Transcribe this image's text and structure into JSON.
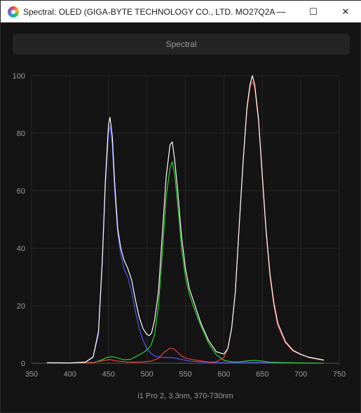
{
  "window": {
    "title": "Spectral: OLED (GIGA-BYTE TECHNOLOGY CO., LTD. MO27Q2A...",
    "icon": "app-logo-icon",
    "minimize_glyph": "—",
    "maximize_glyph": "☐",
    "close_glyph": "✕"
  },
  "toolbar": {
    "spectral_label": "Spectral"
  },
  "chart_data": {
    "type": "line",
    "title": "",
    "xlabel": "i1 Pro 2, 3.3nm, 370-730nm",
    "ylabel": "",
    "xlim": [
      350,
      750
    ],
    "ylim": [
      0,
      100
    ],
    "xticks": [
      350,
      400,
      450,
      500,
      550,
      600,
      650,
      700,
      750
    ],
    "yticks": [
      0,
      20,
      40,
      60,
      80,
      100
    ],
    "grid": true,
    "background": "#141414",
    "series": [
      {
        "color": "#5a5aff",
        "points": [
          [
            370,
            0
          ],
          [
            400,
            0
          ],
          [
            420,
            0.3
          ],
          [
            430,
            2
          ],
          [
            437,
            10
          ],
          [
            442,
            35
          ],
          [
            446,
            62
          ],
          [
            450,
            80
          ],
          [
            452,
            82.5
          ],
          [
            455,
            76
          ],
          [
            458,
            60
          ],
          [
            462,
            45
          ],
          [
            466,
            38
          ],
          [
            470,
            33
          ],
          [
            475,
            30
          ],
          [
            480,
            25
          ],
          [
            485,
            18
          ],
          [
            490,
            12
          ],
          [
            495,
            8
          ],
          [
            500,
            5
          ],
          [
            505,
            3.5
          ],
          [
            510,
            2.5
          ],
          [
            520,
            2
          ],
          [
            530,
            2
          ],
          [
            540,
            1.6
          ],
          [
            550,
            1
          ],
          [
            560,
            0.6
          ],
          [
            580,
            0.3
          ],
          [
            600,
            0.2
          ],
          [
            620,
            0.2
          ],
          [
            640,
            0.3
          ],
          [
            660,
            0.2
          ],
          [
            700,
            0.1
          ],
          [
            730,
            0
          ]
        ]
      },
      {
        "color": "#33dd33",
        "points": [
          [
            370,
            0
          ],
          [
            430,
            0.2
          ],
          [
            440,
            1
          ],
          [
            448,
            2
          ],
          [
            455,
            2.3
          ],
          [
            462,
            1.8
          ],
          [
            470,
            1.2
          ],
          [
            478,
            1.3
          ],
          [
            485,
            2.2
          ],
          [
            492,
            3.2
          ],
          [
            498,
            4.2
          ],
          [
            505,
            6
          ],
          [
            510,
            10
          ],
          [
            515,
            20
          ],
          [
            520,
            38
          ],
          [
            525,
            58
          ],
          [
            530,
            68
          ],
          [
            533,
            70
          ],
          [
            536,
            66
          ],
          [
            540,
            55
          ],
          [
            545,
            40
          ],
          [
            550,
            30
          ],
          [
            555,
            24
          ],
          [
            560,
            20
          ],
          [
            570,
            13
          ],
          [
            580,
            7
          ],
          [
            590,
            3
          ],
          [
            600,
            1
          ],
          [
            610,
            0.5
          ],
          [
            620,
            0.5
          ],
          [
            630,
            0.8
          ],
          [
            640,
            1
          ],
          [
            650,
            0.7
          ],
          [
            660,
            0.4
          ],
          [
            680,
            0.2
          ],
          [
            700,
            0.1
          ],
          [
            730,
            0
          ]
        ]
      },
      {
        "color": "#ff4040",
        "points": [
          [
            370,
            0
          ],
          [
            430,
            0.3
          ],
          [
            445,
            1
          ],
          [
            452,
            1.3
          ],
          [
            460,
            0.8
          ],
          [
            475,
            0.4
          ],
          [
            490,
            0.4
          ],
          [
            505,
            0.7
          ],
          [
            515,
            1.7
          ],
          [
            523,
            4
          ],
          [
            530,
            5.2
          ],
          [
            535,
            5
          ],
          [
            540,
            3.8
          ],
          [
            545,
            2.5
          ],
          [
            550,
            1.8
          ],
          [
            560,
            1.2
          ],
          [
            570,
            0.8
          ],
          [
            580,
            0.4
          ],
          [
            590,
            0.5
          ],
          [
            600,
            2
          ],
          [
            605,
            5
          ],
          [
            610,
            12
          ],
          [
            615,
            25
          ],
          [
            620,
            48
          ],
          [
            625,
            70
          ],
          [
            630,
            88
          ],
          [
            634,
            96
          ],
          [
            637,
            98
          ],
          [
            640,
            96
          ],
          [
            645,
            84
          ],
          [
            650,
            64
          ],
          [
            655,
            45
          ],
          [
            660,
            30
          ],
          [
            665,
            20
          ],
          [
            670,
            13
          ],
          [
            680,
            7
          ],
          [
            690,
            4.2
          ],
          [
            700,
            3
          ],
          [
            710,
            2
          ],
          [
            720,
            1.5
          ],
          [
            730,
            1
          ]
        ]
      },
      {
        "color": "#ffffff",
        "points": [
          [
            370,
            0.2
          ],
          [
            400,
            0.1
          ],
          [
            420,
            0.4
          ],
          [
            430,
            2.2
          ],
          [
            437,
            11
          ],
          [
            442,
            36
          ],
          [
            446,
            64
          ],
          [
            450,
            83
          ],
          [
            452,
            85.5
          ],
          [
            455,
            79
          ],
          [
            458,
            63
          ],
          [
            462,
            47
          ],
          [
            466,
            40
          ],
          [
            470,
            36
          ],
          [
            475,
            33
          ],
          [
            480,
            29
          ],
          [
            485,
            22
          ],
          [
            490,
            16
          ],
          [
            495,
            12
          ],
          [
            500,
            10
          ],
          [
            503,
            9.6
          ],
          [
            506,
            10.5
          ],
          [
            510,
            15
          ],
          [
            515,
            25
          ],
          [
            520,
            45
          ],
          [
            525,
            65
          ],
          [
            530,
            76
          ],
          [
            533,
            77
          ],
          [
            536,
            71
          ],
          [
            540,
            60
          ],
          [
            545,
            44
          ],
          [
            550,
            33
          ],
          [
            555,
            26
          ],
          [
            560,
            22
          ],
          [
            570,
            14
          ],
          [
            580,
            8
          ],
          [
            590,
            4
          ],
          [
            600,
            3.2
          ],
          [
            605,
            5
          ],
          [
            610,
            12
          ],
          [
            615,
            25
          ],
          [
            620,
            48
          ],
          [
            625,
            70
          ],
          [
            630,
            89
          ],
          [
            634,
            97
          ],
          [
            637,
            100
          ],
          [
            640,
            97
          ],
          [
            645,
            85
          ],
          [
            650,
            65
          ],
          [
            655,
            46
          ],
          [
            660,
            31
          ],
          [
            665,
            21
          ],
          [
            670,
            14
          ],
          [
            680,
            7.5
          ],
          [
            690,
            4.5
          ],
          [
            700,
            3.1
          ],
          [
            710,
            2.1
          ],
          [
            720,
            1.6
          ],
          [
            730,
            1.1
          ]
        ]
      }
    ]
  }
}
